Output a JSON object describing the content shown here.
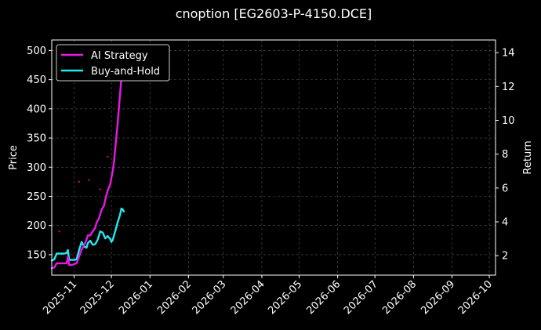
{
  "chart_data": {
    "type": "line",
    "title": "cnoption [EG2603-P-4150.DCE]",
    "xlabel": "",
    "ylabel": "Price",
    "y2label": "Return",
    "xlim": [
      "2025-10-14",
      "2026-10-06"
    ],
    "ylim": [
      115,
      518
    ],
    "y2lim": [
      0.85,
      14.75
    ],
    "x_ticks": [
      "2025-11",
      "2025-12",
      "2026-01",
      "2026-02",
      "2026-03",
      "2026-04",
      "2026-05",
      "2026-06",
      "2026-07",
      "2026-08",
      "2026-09",
      "2026-10"
    ],
    "y_ticks": [
      150,
      200,
      250,
      300,
      350,
      400,
      450,
      500
    ],
    "y2_ticks": [
      2,
      4,
      6,
      8,
      10,
      12,
      14
    ],
    "grid": true,
    "legend_position": "top-left",
    "colors": {
      "background": "#000000",
      "ai_strategy": "#e619e6",
      "buy_and_hold": "#22e8ee",
      "price_dots": "#cc1133",
      "grid": "#555555",
      "text": "#ffffff"
    },
    "price_points": {
      "name": "",
      "axis": "left",
      "x": [
        "2025-10-20",
        "2025-11-05",
        "2025-11-13",
        "2025-11-22",
        "2025-11-28"
      ],
      "y": [
        190,
        275,
        278,
        262,
        318
      ]
    },
    "series": [
      {
        "name": "AI Strategy",
        "axis": "right",
        "x": [
          "2025-10-14",
          "2025-10-16",
          "2025-10-18",
          "2025-10-20",
          "2025-10-22",
          "2025-10-24",
          "2025-10-26",
          "2025-10-27",
          "2025-10-28",
          "2025-10-30",
          "2025-11-01",
          "2025-11-03",
          "2025-11-04",
          "2025-11-05",
          "2025-11-07",
          "2025-11-09",
          "2025-11-11",
          "2025-11-12",
          "2025-11-14",
          "2025-11-16",
          "2025-11-18",
          "2025-11-19",
          "2025-11-21",
          "2025-11-23",
          "2025-11-25",
          "2025-11-26",
          "2025-11-28",
          "2025-11-30",
          "2025-12-01",
          "2025-12-02",
          "2025-12-03",
          "2025-12-04",
          "2025-12-05",
          "2025-12-06",
          "2025-12-07",
          "2025-12-08",
          "2025-12-09",
          "2025-12-10",
          "2025-12-11"
        ],
        "y": [
          1.25,
          1.3,
          1.55,
          1.55,
          1.55,
          1.55,
          1.55,
          1.95,
          1.45,
          1.45,
          1.5,
          1.55,
          1.75,
          1.95,
          2.35,
          2.6,
          2.95,
          3.2,
          3.2,
          3.45,
          3.65,
          3.95,
          4.2,
          4.7,
          4.95,
          5.3,
          5.85,
          6.2,
          6.6,
          7.0,
          7.5,
          8.3,
          9.0,
          9.8,
          10.7,
          11.6,
          12.5,
          13.3,
          14.0
        ]
      },
      {
        "name": "Buy-and-Hold",
        "axis": "left",
        "x": [
          "2025-10-14",
          "2025-10-16",
          "2025-10-18",
          "2025-10-20",
          "2025-10-22",
          "2025-10-24",
          "2025-10-26",
          "2025-10-27",
          "2025-10-28",
          "2025-10-30",
          "2025-11-01",
          "2025-11-03",
          "2025-11-04",
          "2025-11-05",
          "2025-11-07",
          "2025-11-09",
          "2025-11-11",
          "2025-11-12",
          "2025-11-14",
          "2025-11-16",
          "2025-11-18",
          "2025-11-20",
          "2025-11-22",
          "2025-11-24",
          "2025-11-26",
          "2025-11-28",
          "2025-11-30",
          "2025-12-01",
          "2025-12-02",
          "2025-12-04",
          "2025-12-06",
          "2025-12-07",
          "2025-12-08",
          "2025-12-09",
          "2025-12-10",
          "2025-12-11"
        ],
        "y": [
          140,
          142,
          152,
          152,
          152,
          152,
          153,
          158,
          141,
          141,
          141,
          142,
          150,
          158,
          172,
          164,
          162,
          170,
          174,
          167,
          168,
          176,
          190,
          188,
          178,
          182,
          177,
          172,
          175,
          190,
          205,
          212,
          219,
          229,
          228,
          224
        ]
      }
    ]
  }
}
